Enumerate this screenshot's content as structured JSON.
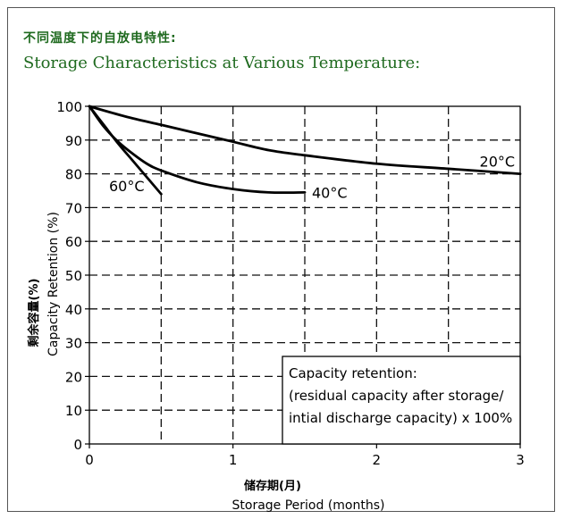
{
  "title_cn": "不同温度下的自放电特性:",
  "title_en": "Storage Characteristics at Various Temperature:",
  "chart_data": {
    "type": "line",
    "xlabel_cn": "储存期(月)",
    "xlabel": "Storage Period (months)",
    "ylabel_cn": "剩余容量(%)",
    "ylabel": "Capacity Retention (%)",
    "xlim": [
      0,
      3
    ],
    "ylim": [
      0,
      100
    ],
    "xticks": [
      "0",
      "1",
      "2",
      "3"
    ],
    "yticks": [
      "0",
      "10",
      "20",
      "30",
      "40",
      "50",
      "60",
      "70",
      "80",
      "90",
      "100"
    ],
    "grid": true,
    "series": [
      {
        "name": "20°C",
        "x": [
          0,
          0.25,
          0.5,
          0.75,
          1.0,
          1.25,
          1.5,
          2.0,
          2.5,
          3.0
        ],
        "y": [
          100,
          97,
          94.5,
          92,
          89.5,
          87,
          85.5,
          83,
          81.5,
          80
        ]
      },
      {
        "name": "40°C",
        "x": [
          0,
          0.1,
          0.2,
          0.3,
          0.4,
          0.5,
          0.75,
          1.0,
          1.25,
          1.5
        ],
        "y": [
          100,
          94,
          89.5,
          86,
          83,
          81,
          77.5,
          75.5,
          74.5,
          74.5
        ]
      },
      {
        "name": "60°C",
        "x": [
          0,
          0.1,
          0.2,
          0.3,
          0.4,
          0.5
        ],
        "y": [
          100,
          94.5,
          89,
          84,
          79,
          74
        ]
      }
    ],
    "annotation": [
      "Capacity retention:",
      "(residual capacity after storage/",
      "intial discharge capacity) x 100%"
    ]
  }
}
